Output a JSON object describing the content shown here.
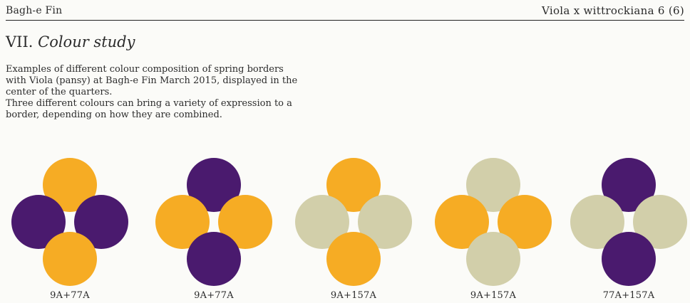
{
  "header": {
    "left": "Bagh-e Fin",
    "right": "Viola x wittrockiana 6 (6)"
  },
  "section": {
    "number": "VII.",
    "title": "Colour study"
  },
  "body": {
    "paragraph_1": "Examples of different colour composition of spring borders with Viola (pansy) at Bagh-e Fin March 2015, displayed in the center of the quarters.",
    "paragraph_2": "Three different colours can bring a variety of expression to a border, depending on how they are combined."
  },
  "colors": {
    "9A": "#f6ac24",
    "77A": "#4a1a6e",
    "157A": "#d2cfaa"
  },
  "swatches": [
    {
      "label": "9A+77A",
      "top": "9A",
      "left": "77A",
      "right": "77A",
      "bottom": "9A"
    },
    {
      "label": "9A+77A",
      "top": "77A",
      "left": "9A",
      "right": "9A",
      "bottom": "77A"
    },
    {
      "label": "9A+157A",
      "top": "9A",
      "left": "157A",
      "right": "157A",
      "bottom": "9A"
    },
    {
      "label": "9A+157A",
      "top": "157A",
      "left": "9A",
      "right": "9A",
      "bottom": "157A"
    },
    {
      "label": "77A+157A",
      "top": "77A",
      "left": "157A",
      "right": "157A",
      "bottom": "77A"
    }
  ]
}
